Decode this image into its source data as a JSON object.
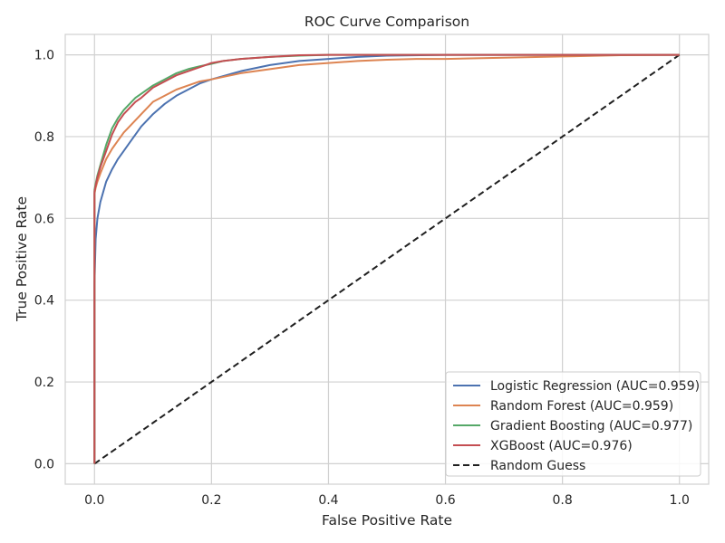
{
  "chart_data": {
    "type": "line",
    "title": "ROC Curve Comparison",
    "xlabel": "False Positive Rate",
    "ylabel": "True Positive Rate",
    "xlim": [
      -0.05,
      1.05
    ],
    "ylim": [
      -0.05,
      1.05
    ],
    "xticks": [
      "0.0",
      "0.2",
      "0.4",
      "0.6",
      "0.8",
      "1.0"
    ],
    "yticks": [
      "0.0",
      "0.2",
      "0.4",
      "0.6",
      "0.8",
      "1.0"
    ],
    "grid": true,
    "legend_position": "bottom-right",
    "series": [
      {
        "name": "Logistic Regression (AUC=0.959)",
        "color": "#4c72b0",
        "dash": false,
        "x": [
          0,
          0,
          0.002,
          0.005,
          0.01,
          0.015,
          0.02,
          0.03,
          0.04,
          0.05,
          0.06,
          0.07,
          0.08,
          0.09,
          0.1,
          0.12,
          0.14,
          0.16,
          0.18,
          0.2,
          0.25,
          0.3,
          0.35,
          0.4,
          0.45,
          0.5,
          0.6,
          0.7,
          0.8,
          0.9,
          1.0
        ],
        "y": [
          0,
          0.44,
          0.55,
          0.6,
          0.64,
          0.665,
          0.69,
          0.72,
          0.745,
          0.765,
          0.785,
          0.805,
          0.825,
          0.84,
          0.855,
          0.88,
          0.9,
          0.915,
          0.93,
          0.94,
          0.96,
          0.975,
          0.985,
          0.99,
          0.995,
          0.998,
          1.0,
          1.0,
          1.0,
          1.0,
          1.0
        ]
      },
      {
        "name": "Random Forest (AUC=0.959)",
        "color": "#dd8452",
        "dash": false,
        "x": [
          0,
          0,
          0.002,
          0.005,
          0.01,
          0.02,
          0.03,
          0.04,
          0.05,
          0.06,
          0.08,
          0.1,
          0.12,
          0.14,
          0.16,
          0.18,
          0.2,
          0.25,
          0.3,
          0.35,
          0.4,
          0.45,
          0.5,
          0.55,
          0.6,
          0.7,
          0.8,
          0.9,
          1.0
        ],
        "y": [
          0,
          0.66,
          0.675,
          0.69,
          0.71,
          0.745,
          0.77,
          0.79,
          0.81,
          0.825,
          0.855,
          0.885,
          0.9,
          0.915,
          0.925,
          0.935,
          0.94,
          0.955,
          0.965,
          0.975,
          0.98,
          0.985,
          0.988,
          0.99,
          0.99,
          0.993,
          0.996,
          0.999,
          1.0
        ]
      },
      {
        "name": "Gradient Boosting (AUC=0.977)",
        "color": "#55a868",
        "dash": false,
        "x": [
          0,
          0,
          0.002,
          0.005,
          0.01,
          0.02,
          0.03,
          0.04,
          0.05,
          0.06,
          0.07,
          0.08,
          0.1,
          0.12,
          0.14,
          0.16,
          0.18,
          0.2,
          0.22,
          0.25,
          0.3,
          0.35,
          0.4,
          0.5,
          0.6,
          0.8,
          1.0
        ],
        "y": [
          0,
          0.67,
          0.685,
          0.705,
          0.73,
          0.78,
          0.82,
          0.845,
          0.865,
          0.88,
          0.895,
          0.905,
          0.925,
          0.94,
          0.955,
          0.965,
          0.972,
          0.978,
          0.985,
          0.99,
          0.995,
          0.998,
          1.0,
          1.0,
          1.0,
          1.0,
          1.0
        ]
      },
      {
        "name": "XGBoost (AUC=0.976)",
        "color": "#c44e52",
        "dash": false,
        "x": [
          0,
          0,
          0.002,
          0.005,
          0.01,
          0.02,
          0.03,
          0.04,
          0.05,
          0.06,
          0.07,
          0.08,
          0.1,
          0.12,
          0.14,
          0.16,
          0.18,
          0.2,
          0.22,
          0.25,
          0.3,
          0.35,
          0.4,
          0.5,
          0.6,
          0.8,
          1.0
        ],
        "y": [
          0,
          0.665,
          0.68,
          0.7,
          0.725,
          0.765,
          0.805,
          0.835,
          0.855,
          0.87,
          0.885,
          0.895,
          0.92,
          0.935,
          0.95,
          0.96,
          0.97,
          0.98,
          0.985,
          0.99,
          0.995,
          0.999,
          1.0,
          1.0,
          1.0,
          1.0,
          1.0
        ]
      },
      {
        "name": "Random Guess",
        "color": "#1f1f1f",
        "dash": true,
        "x": [
          0,
          1
        ],
        "y": [
          0,
          1
        ]
      }
    ]
  }
}
